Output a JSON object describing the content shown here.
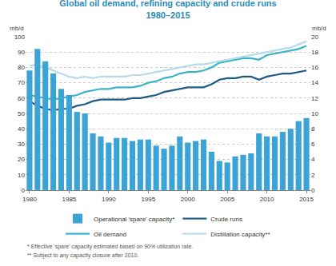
{
  "chart_data": {
    "type": "bar",
    "title": "Global oil demand, refining capacity and crude runs",
    "subtitle": "1980–2015",
    "y_label": "mb/d",
    "y2_label": "mb/d",
    "x": [
      1980,
      1981,
      1982,
      1983,
      1984,
      1985,
      1986,
      1987,
      1988,
      1989,
      1990,
      1991,
      1992,
      1993,
      1994,
      1995,
      1996,
      1997,
      1998,
      1999,
      2000,
      2001,
      2002,
      2003,
      2004,
      2005,
      2006,
      2007,
      2008,
      2009,
      2010,
      2011,
      2012,
      2013,
      2014,
      2015
    ],
    "xlim": [
      1979.5,
      2015.5
    ],
    "xticks": [
      1980,
      1985,
      1990,
      1995,
      2000,
      2005,
      2010,
      2015
    ],
    "ylim": [
      0,
      100
    ],
    "yticks": [
      0,
      10,
      20,
      30,
      40,
      50,
      60,
      70,
      80,
      90,
      100
    ],
    "y2lim": [
      0,
      20
    ],
    "y2ticks": [
      0,
      2,
      4,
      6,
      8,
      10,
      12,
      14,
      16,
      18,
      20
    ],
    "grid": true,
    "legend": "bottom",
    "series": [
      {
        "name": "Operational 'spare' capacity*",
        "type": "bar",
        "axis": "y2",
        "color": "#3ba3d6",
        "values": [
          15.6,
          18.4,
          16.8,
          15.2,
          13.2,
          12.4,
          10.2,
          10.0,
          7.4,
          7.0,
          6.2,
          6.8,
          6.8,
          6.4,
          6.6,
          6.6,
          5.8,
          5.4,
          5.8,
          7.0,
          6.2,
          6.4,
          6.6,
          5.0,
          3.8,
          3.6,
          4.4,
          4.6,
          4.8,
          7.4,
          7.0,
          7.0,
          7.6,
          8.0,
          9.0,
          9.4
        ]
      },
      {
        "name": "Crude runs",
        "type": "line",
        "color": "#1e5c86",
        "values": [
          58,
          55,
          53,
          52,
          53,
          53,
          55,
          56,
          58,
          59,
          59,
          59,
          59,
          60,
          60,
          61,
          62,
          64,
          65,
          66,
          67,
          67,
          67,
          69,
          72,
          73,
          73,
          74,
          74,
          72,
          74,
          75,
          76,
          76,
          77,
          78
        ]
      },
      {
        "name": "Oil demand",
        "type": "line",
        "color": "#3ab5c8",
        "values": [
          62,
          61,
          60,
          59,
          60,
          61,
          62,
          64,
          65,
          66,
          66,
          67,
          67,
          67,
          68,
          70,
          71,
          73,
          74,
          76,
          77,
          77,
          78,
          80,
          83,
          84,
          85,
          86,
          86,
          85,
          88,
          89,
          90,
          91,
          92,
          94
        ]
      },
      {
        "name": "Distillation capacity**",
        "type": "line",
        "color": "#b7dbe8",
        "values": [
          81,
          82,
          80,
          78,
          76,
          74,
          73,
          74,
          73,
          74,
          74,
          74,
          74,
          75,
          75,
          76,
          77,
          78,
          79,
          80,
          81,
          82,
          82,
          83,
          84,
          85,
          86,
          87,
          88,
          89,
          90,
          91,
          92,
          93,
          95,
          97
        ]
      }
    ],
    "notes": [
      "* Effective 'spare' capacity estimated based on 90% utilization rate.",
      "** Subject to any capacity closure after 2010."
    ]
  }
}
